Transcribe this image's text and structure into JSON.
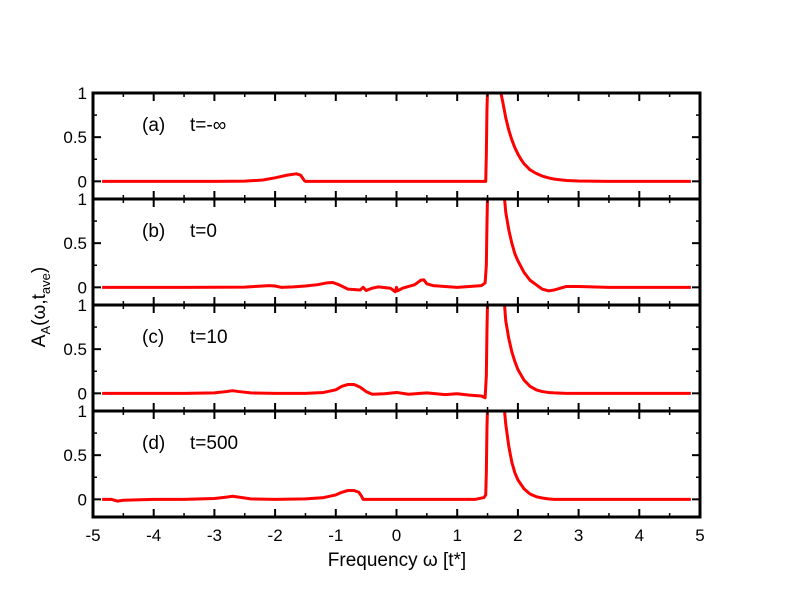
{
  "figure": {
    "xlabel": "Frequency ω [t*]",
    "ylabel": {
      "main": "A",
      "sub1": "A",
      "paren_open": "(ω,t",
      "sub2": "ave",
      "paren_close": ")"
    }
  },
  "chart_data": {
    "type": "line",
    "xlabel": "Frequency ω [t*]",
    "ylabel": "A_A(ω,t_ave)",
    "xlim": [
      -5,
      5
    ],
    "xticks": [
      -5,
      -4,
      -3,
      -2,
      -1,
      0,
      1,
      2,
      3,
      4,
      5
    ],
    "ylim": [
      -0.2,
      1
    ],
    "yticks": [
      0,
      0.5,
      1
    ],
    "grid": false,
    "line_color": "#ff0000",
    "panels": [
      {
        "label": "(a)",
        "title": "t=-∞",
        "series": [
          {
            "x": [
              -4.85,
              -3.0,
              -2.5,
              -2.2,
              -2.0,
              -1.8,
              -1.65,
              -1.58,
              -1.55,
              -1.52,
              -1.5,
              -1.0,
              0.0,
              1.0,
              1.47,
              1.48,
              1.49,
              1.5,
              1.52,
              1.6,
              1.7,
              1.72,
              1.75,
              1.8,
              1.85,
              1.9,
              1.95,
              2.0,
              2.05,
              2.1,
              2.2,
              2.3,
              2.4,
              2.5,
              2.6,
              2.8,
              3.0,
              3.5,
              4.0,
              4.85
            ],
            "y": [
              0.0,
              0.0,
              0.002,
              0.015,
              0.04,
              0.07,
              0.085,
              0.07,
              0.04,
              0.01,
              0.0,
              0.0,
              0.0,
              0.0,
              0.0,
              0.3,
              0.8,
              1.05,
              1.1,
              1.1,
              1.1,
              1.0,
              0.9,
              0.72,
              0.58,
              0.47,
              0.38,
              0.31,
              0.25,
              0.2,
              0.13,
              0.09,
              0.06,
              0.04,
              0.025,
              0.01,
              0.004,
              0.0,
              0.0,
              0.0
            ]
          }
        ]
      },
      {
        "label": "(b)",
        "title": "t=0",
        "series": [
          {
            "x": [
              -4.85,
              -3.5,
              -2.5,
              -2.2,
              -2.1,
              -2.0,
              -1.9,
              -1.7,
              -1.5,
              -1.3,
              -1.15,
              -1.05,
              -0.95,
              -0.8,
              -0.6,
              -0.55,
              -0.5,
              -0.4,
              -0.3,
              -0.1,
              -0.02,
              0.0,
              0.02,
              0.1,
              0.2,
              0.3,
              0.4,
              0.45,
              0.5,
              0.6,
              0.8,
              1.0,
              1.2,
              1.4,
              1.46,
              1.48,
              1.49,
              1.5,
              1.52,
              1.6,
              1.7,
              1.78,
              1.8,
              1.85,
              1.9,
              1.95,
              2.0,
              2.1,
              2.2,
              2.3,
              2.4,
              2.5,
              2.6,
              2.8,
              3.0,
              3.5,
              4.0,
              4.85
            ],
            "y": [
              0.0,
              0.0,
              0.003,
              0.015,
              0.02,
              0.015,
              0.0,
              0.005,
              0.015,
              0.03,
              0.05,
              0.055,
              0.03,
              -0.02,
              -0.03,
              0.0,
              -0.035,
              -0.01,
              0.005,
              -0.01,
              -0.05,
              0.0,
              -0.04,
              -0.01,
              0.01,
              0.03,
              0.08,
              0.085,
              0.04,
              0.02,
              0.01,
              0.0,
              0.01,
              0.02,
              0.05,
              0.25,
              0.7,
              1.05,
              1.1,
              1.1,
              1.1,
              1.0,
              0.85,
              0.65,
              0.5,
              0.38,
              0.3,
              0.17,
              0.08,
              0.03,
              -0.02,
              -0.04,
              -0.03,
              0.01,
              0.01,
              0.0,
              0.0,
              0.0
            ]
          }
        ]
      },
      {
        "label": "(c)",
        "title": "t=10",
        "series": [
          {
            "x": [
              -4.85,
              -3.5,
              -3.0,
              -2.8,
              -2.7,
              -2.6,
              -2.4,
              -2.0,
              -1.5,
              -1.2,
              -1.0,
              -0.9,
              -0.8,
              -0.7,
              -0.6,
              -0.5,
              -0.4,
              -0.2,
              0.0,
              0.2,
              0.5,
              0.8,
              1.0,
              1.2,
              1.4,
              1.46,
              1.48,
              1.49,
              1.5,
              1.52,
              1.6,
              1.7,
              1.78,
              1.8,
              1.85,
              1.9,
              1.95,
              2.0,
              2.1,
              2.2,
              2.3,
              2.4,
              2.5,
              2.6,
              2.8,
              3.0,
              3.5,
              4.0,
              4.85
            ],
            "y": [
              0.0,
              0.0,
              0.005,
              0.02,
              0.03,
              0.02,
              0.005,
              0.0,
              0.0,
              0.01,
              0.04,
              0.08,
              0.1,
              0.1,
              0.07,
              0.02,
              -0.01,
              -0.005,
              0.01,
              -0.01,
              0.005,
              -0.015,
              -0.005,
              -0.02,
              -0.03,
              -0.05,
              0.2,
              0.7,
              1.05,
              1.1,
              1.1,
              1.1,
              1.0,
              0.82,
              0.62,
              0.47,
              0.36,
              0.27,
              0.15,
              0.08,
              0.04,
              0.02,
              0.01,
              0.005,
              0.0,
              0.0,
              0.0,
              0.0,
              0.0
            ]
          }
        ]
      },
      {
        "label": "(d)",
        "title": "t=500",
        "series": [
          {
            "x": [
              -4.85,
              -4.7,
              -4.6,
              -4.5,
              -4.0,
              -3.5,
              -3.0,
              -2.8,
              -2.7,
              -2.6,
              -2.4,
              -2.0,
              -1.5,
              -1.2,
              -1.0,
              -0.9,
              -0.8,
              -0.7,
              -0.62,
              -0.58,
              -0.55,
              -0.5,
              -0.3,
              0.0,
              0.5,
              1.0,
              1.3,
              1.44,
              1.47,
              1.48,
              1.49,
              1.5,
              1.52,
              1.6,
              1.7,
              1.78,
              1.8,
              1.85,
              1.9,
              1.95,
              2.0,
              2.1,
              2.2,
              2.3,
              2.4,
              2.5,
              2.6,
              2.8,
              3.0,
              3.5,
              4.0,
              4.85
            ],
            "y": [
              0.0,
              0.0,
              -0.02,
              -0.01,
              0.0,
              0.0,
              0.01,
              0.025,
              0.035,
              0.025,
              0.005,
              0.0,
              0.005,
              0.02,
              0.05,
              0.08,
              0.1,
              0.1,
              0.08,
              0.04,
              0.0,
              0.0,
              0.0,
              0.0,
              0.0,
              0.0,
              0.0,
              0.02,
              0.05,
              0.3,
              0.8,
              1.05,
              1.1,
              1.1,
              1.1,
              1.0,
              0.85,
              0.6,
              0.42,
              0.3,
              0.22,
              0.12,
              0.06,
              0.03,
              0.015,
              0.005,
              0.0,
              0.0,
              0.0,
              0.0,
              0.0,
              0.0
            ]
          }
        ]
      }
    ]
  }
}
